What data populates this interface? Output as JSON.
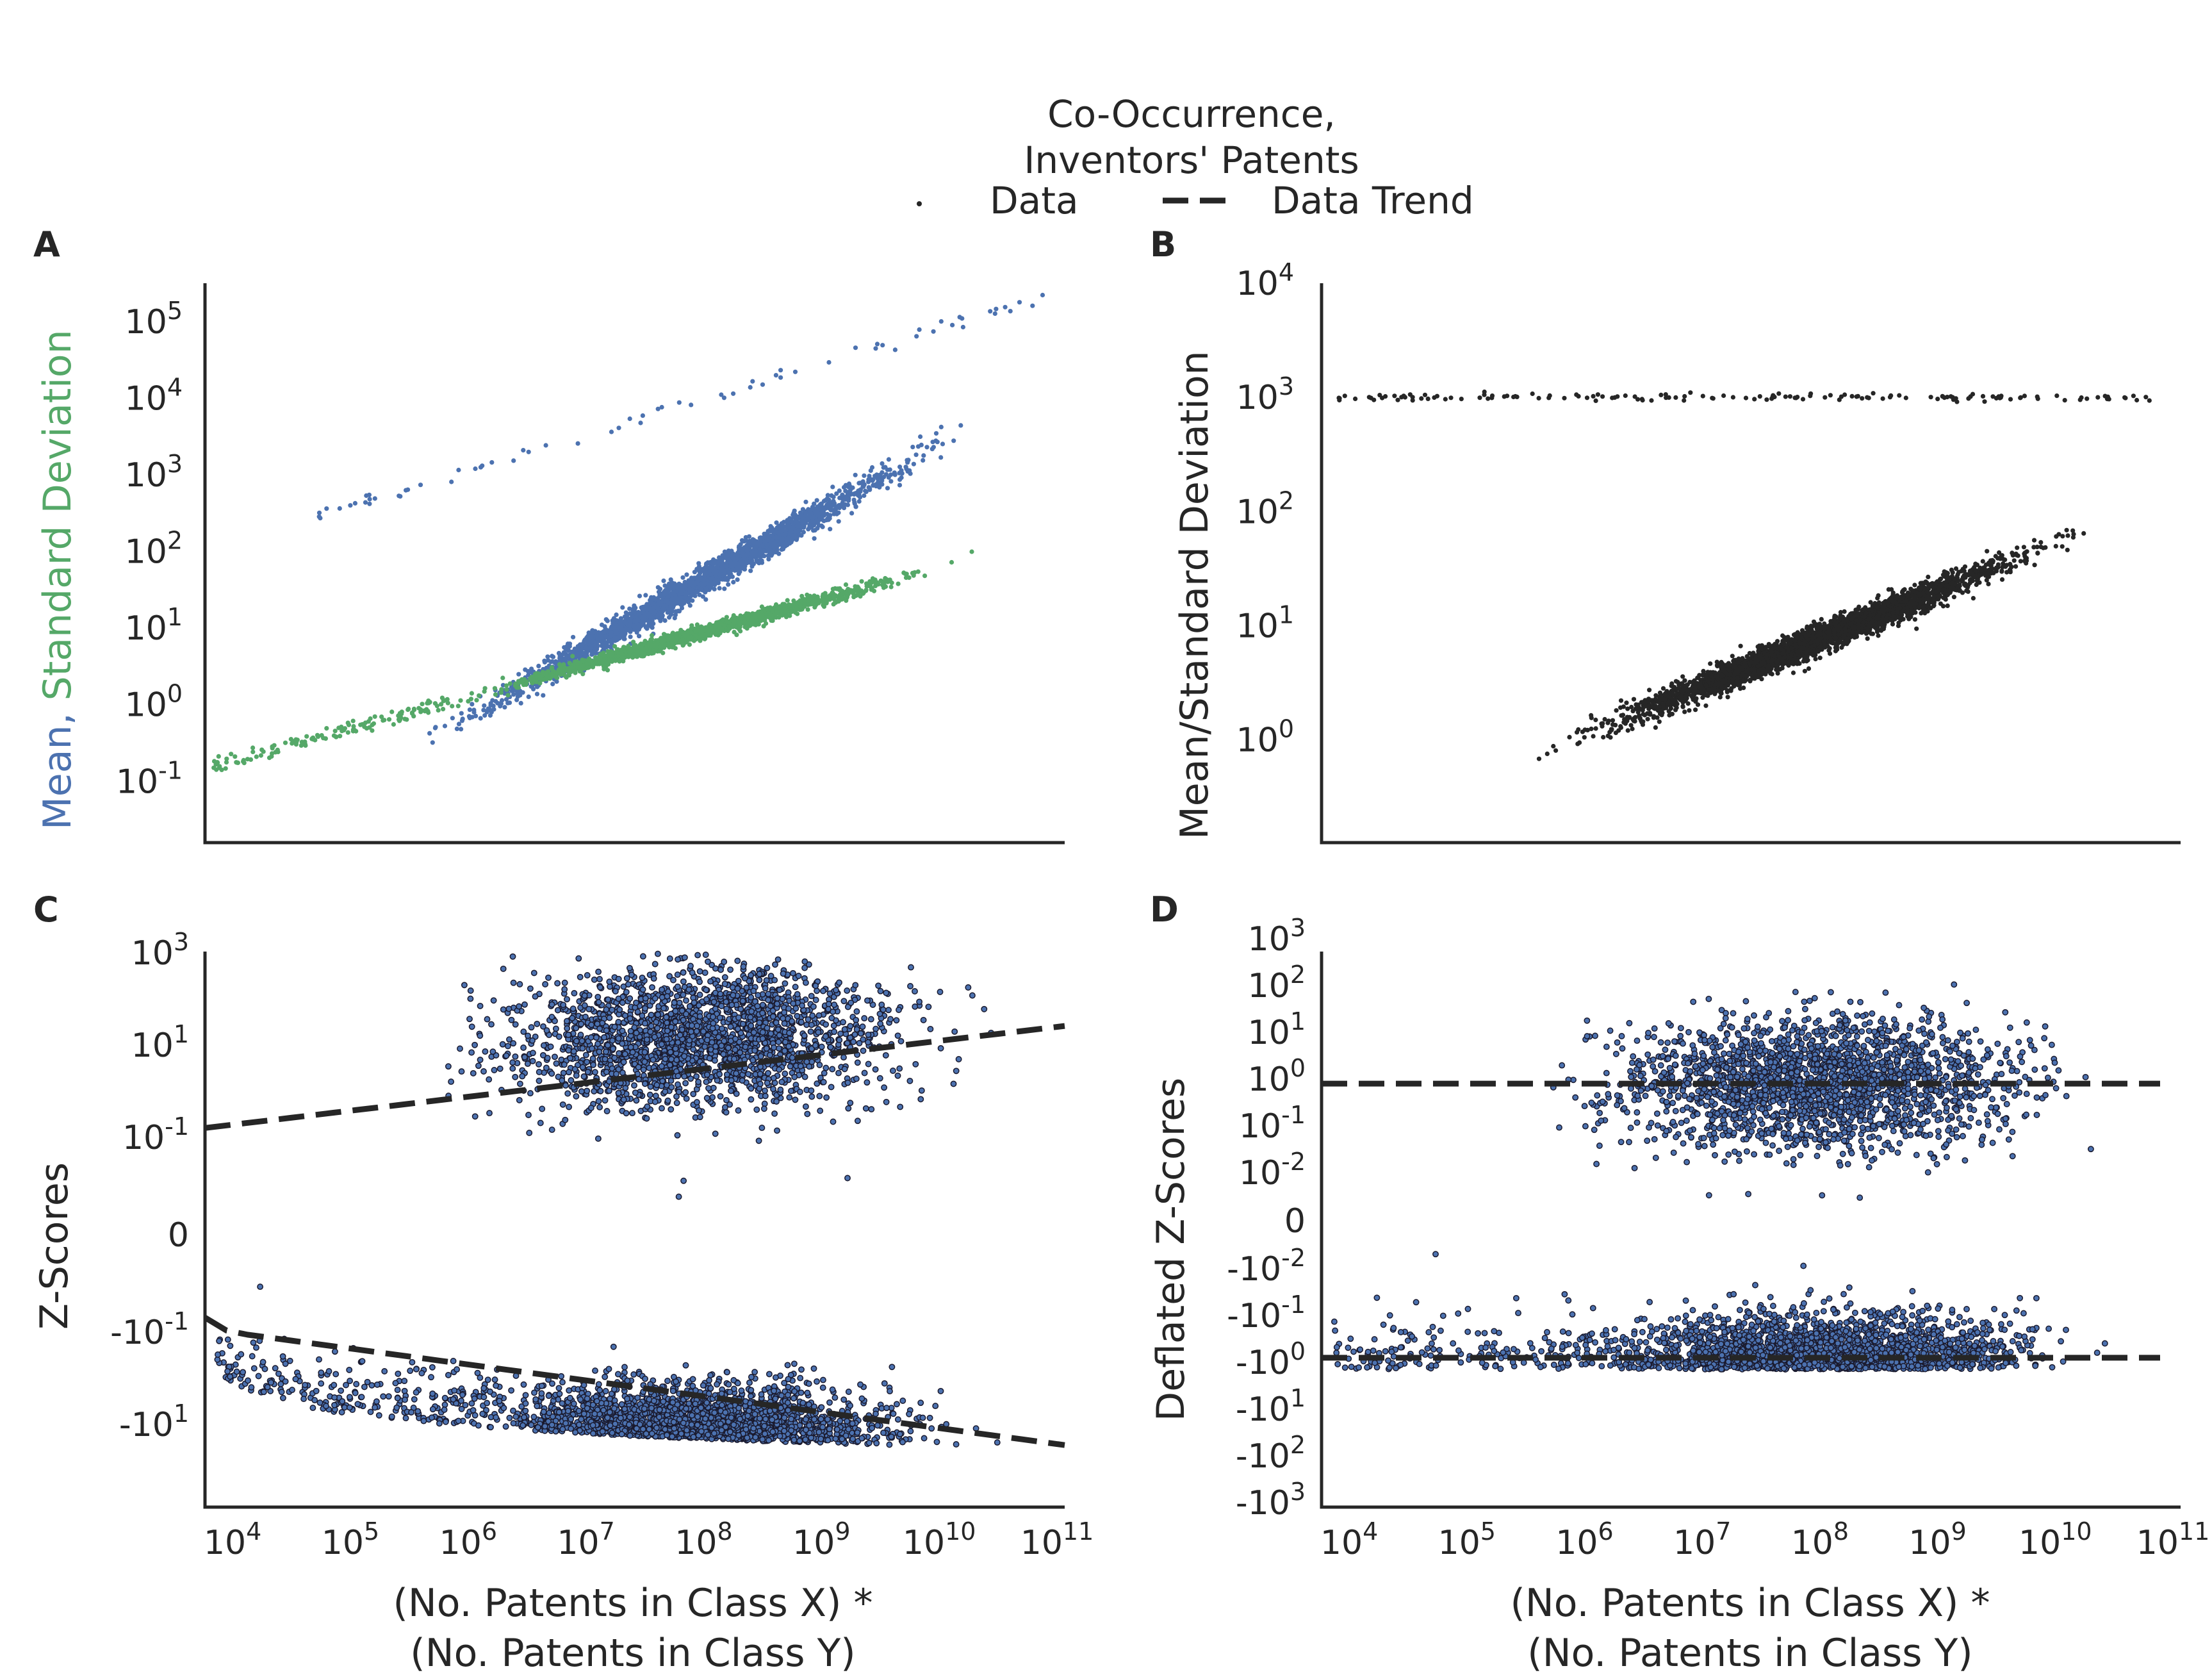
{
  "legend": {
    "title_line1": "Co-Occurrence,",
    "title_line2": "Inventors' Patents",
    "data_label": "Data",
    "trend_label": "Data Trend"
  },
  "colors": {
    "mean": "#4c72b0",
    "std": "#55a868",
    "dark": "#262626",
    "point_edge": "#1a1a2e"
  },
  "xaxis": {
    "title_line1": "(No. Patents in Class X) *",
    "title_line2": "(No. Patents in Class Y)",
    "ticks": [
      {
        "base": "10",
        "exp": "4"
      },
      {
        "base": "10",
        "exp": "5"
      },
      {
        "base": "10",
        "exp": "6"
      },
      {
        "base": "10",
        "exp": "7"
      },
      {
        "base": "10",
        "exp": "8"
      },
      {
        "base": "10",
        "exp": "9"
      },
      {
        "base": "10",
        "exp": "10"
      },
      {
        "base": "10",
        "exp": "11"
      }
    ]
  },
  "panels": {
    "A": {
      "label": "A",
      "ylabel_mean": "Mean,",
      "ylabel_std": "Standard Deviation",
      "yticks": [
        {
          "base": "10",
          "exp": "-1"
        },
        {
          "base": "10",
          "exp": "0"
        },
        {
          "base": "10",
          "exp": "1"
        },
        {
          "base": "10",
          "exp": "2"
        },
        {
          "base": "10",
          "exp": "3"
        },
        {
          "base": "10",
          "exp": "4"
        },
        {
          "base": "10",
          "exp": "5"
        }
      ]
    },
    "B": {
      "label": "B",
      "ylabel": "Mean/Standard Deviation",
      "yticks": [
        {
          "base": "10",
          "exp": "0"
        },
        {
          "base": "10",
          "exp": "1"
        },
        {
          "base": "10",
          "exp": "2"
        },
        {
          "base": "10",
          "exp": "3"
        },
        {
          "base": "10",
          "exp": "4"
        }
      ]
    },
    "C": {
      "label": "C",
      "ylabel": "Z-Scores",
      "yticks": [
        {
          "base": "-10",
          "exp": "1"
        },
        {
          "base": "-10",
          "exp": "-1"
        },
        {
          "base": "0",
          "exp": ""
        },
        {
          "base": "10",
          "exp": "-1"
        },
        {
          "base": "10",
          "exp": "1"
        },
        {
          "base": "10",
          "exp": "3"
        }
      ]
    },
    "D": {
      "label": "D",
      "ylabel": "Deflated Z-Scores",
      "yticks": [
        {
          "base": "-10",
          "exp": "3"
        },
        {
          "base": "-10",
          "exp": "2"
        },
        {
          "base": "-10",
          "exp": "1"
        },
        {
          "base": "-10",
          "exp": "0"
        },
        {
          "base": "-10",
          "exp": "-1"
        },
        {
          "base": "-10",
          "exp": "-2"
        },
        {
          "base": "0",
          "exp": ""
        },
        {
          "base": "10",
          "exp": "-2"
        },
        {
          "base": "10",
          "exp": "-1"
        },
        {
          "base": "10",
          "exp": "0"
        },
        {
          "base": "10",
          "exp": "1"
        },
        {
          "base": "10",
          "exp": "2"
        },
        {
          "base": "10",
          "exp": "3"
        }
      ]
    }
  },
  "chart_data": [
    {
      "panel": "A",
      "type": "scatter",
      "x_scale": "log",
      "y_scale": "log",
      "xlim_log10": [
        3.7,
        11
      ],
      "ylim_log10": [
        -1.8,
        5.5
      ],
      "series": [
        {
          "name": "Mean",
          "color": "#4c72b0",
          "main_cluster_trend": {
            "x_log10": [
              4.2,
              10.95
            ],
            "y_log10": [
              -1.7,
              4.3
            ]
          },
          "upper_band_trend": {
            "x_log10": [
              4.3,
              11.0
            ],
            "y_log10": [
              2.3,
              5.4
            ]
          }
        },
        {
          "name": "Standard Deviation",
          "color": "#55a868",
          "trend": {
            "x_log10": [
              3.7,
              11.0
            ],
            "y_log10": [
              -0.85,
              2.25
            ]
          }
        }
      ]
    },
    {
      "panel": "B",
      "type": "scatter",
      "x_scale": "log",
      "y_scale": "log",
      "xlim_log10": [
        3.7,
        11
      ],
      "ylim_log10": [
        -0.9,
        4.0
      ],
      "series": [
        {
          "name": "Data",
          "color": "#262626",
          "main_trend": {
            "x_log10": [
              3.8,
              10.95
            ],
            "y_log10": [
              -0.85,
              2.15
            ]
          },
          "flat_band": {
            "x_log10": [
              3.8,
              11.0
            ],
            "y_log10": 3.0
          }
        }
      ]
    },
    {
      "panel": "C",
      "type": "scatter",
      "x_scale": "log",
      "y_scale": "symlog",
      "xlim_log10": [
        3.7,
        11
      ],
      "series": [
        {
          "name": "Data",
          "color": "#4c72b0"
        },
        {
          "name": "Data Trend",
          "style": "dashed",
          "positive": {
            "x_log10": [
              3.7,
              11.0
            ],
            "y": [
              0.16,
              26
            ]
          },
          "negative": {
            "x_log10": [
              3.7,
              11.0
            ],
            "y": [
              -0.085,
              -28
            ]
          }
        }
      ]
    },
    {
      "panel": "D",
      "type": "scatter",
      "x_scale": "log",
      "y_scale": "symlog",
      "xlim_log10": [
        3.7,
        11
      ],
      "series": [
        {
          "name": "Data",
          "color": "#4c72b0"
        },
        {
          "name": "Data Trend",
          "style": "dashed",
          "positive": {
            "x_log10": [
              3.7,
              11.0
            ],
            "y": [
              0.8,
              0.8
            ]
          },
          "negative": {
            "x_log10": [
              3.7,
              11.0
            ],
            "y": [
              -0.8,
              -0.8
            ]
          }
        }
      ]
    }
  ]
}
